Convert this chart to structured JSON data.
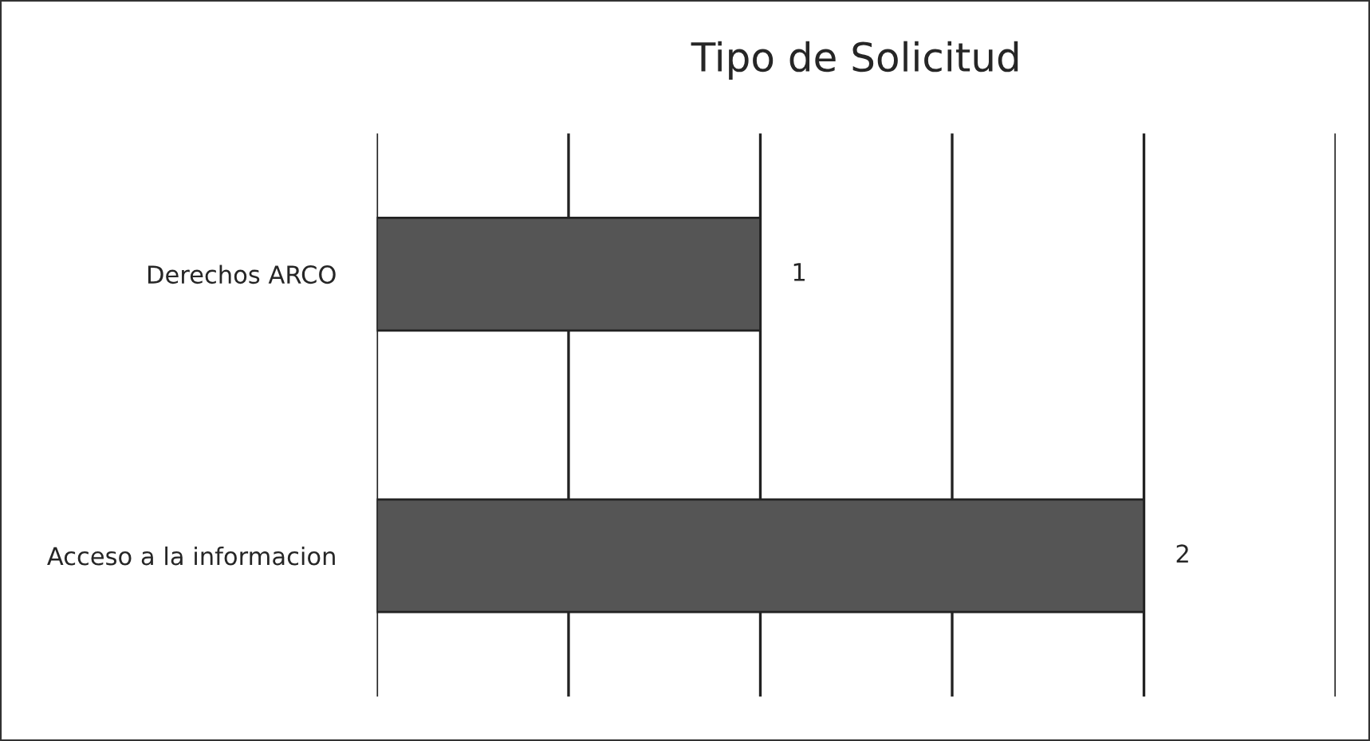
{
  "chart_data": {
    "type": "bar",
    "orientation": "horizontal",
    "title": "Tipo de Solicitud",
    "categories": [
      "Derechos ARCO",
      "Acceso a la informacion"
    ],
    "values": [
      1,
      2
    ],
    "color": "#555555",
    "data_labels": true,
    "xlim": [
      0,
      2.5
    ],
    "xticks": [
      {
        "value": 0,
        "label": null
      },
      {
        "value": 0.5,
        "label": null
      },
      {
        "value": 1,
        "label": null
      },
      {
        "value": 1.5,
        "label": null
      },
      {
        "value": 2,
        "label": null
      },
      {
        "value": 2.5,
        "label": null
      }
    ],
    "grid": "x",
    "tick_labels": "y"
  }
}
